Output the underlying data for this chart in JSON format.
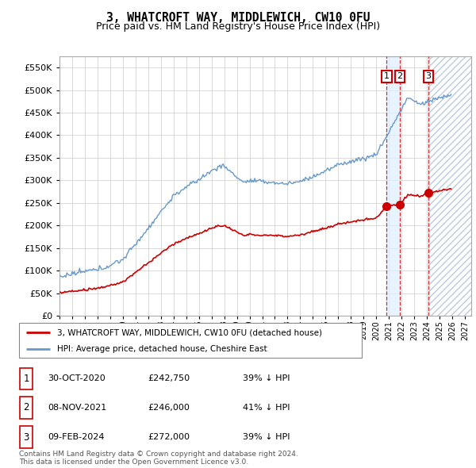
{
  "title": "3, WHATCROFT WAY, MIDDLEWICH, CW10 0FU",
  "subtitle": "Price paid vs. HM Land Registry's House Price Index (HPI)",
  "hpi_color": "#6699cc",
  "price_color": "#cc0000",
  "bg_color": "#ffffff",
  "grid_color": "#cccccc",
  "ylim": [
    0,
    575000
  ],
  "yticks": [
    0,
    50000,
    100000,
    150000,
    200000,
    250000,
    300000,
    350000,
    400000,
    450000,
    500000,
    550000
  ],
  "xlim_start": 1995.0,
  "xlim_end": 2027.5,
  "transactions": [
    {
      "date": 2020.83,
      "price": 242750,
      "label": "1"
    },
    {
      "date": 2021.86,
      "price": 246000,
      "label": "2"
    },
    {
      "date": 2024.11,
      "price": 272000,
      "label": "3"
    }
  ],
  "legend_property": "3, WHATCROFT WAY, MIDDLEWICH, CW10 0FU (detached house)",
  "legend_hpi": "HPI: Average price, detached house, Cheshire East",
  "table_rows": [
    {
      "num": "1",
      "date": "30-OCT-2020",
      "price": "£242,750",
      "change": "39% ↓ HPI"
    },
    {
      "num": "2",
      "date": "08-NOV-2021",
      "price": "£246,000",
      "change": "41% ↓ HPI"
    },
    {
      "num": "3",
      "date": "09-FEB-2024",
      "price": "£272,000",
      "change": "39% ↓ HPI"
    }
  ],
  "footer": "Contains HM Land Registry data © Crown copyright and database right 2024.\nThis data is licensed under the Open Government Licence v3.0."
}
